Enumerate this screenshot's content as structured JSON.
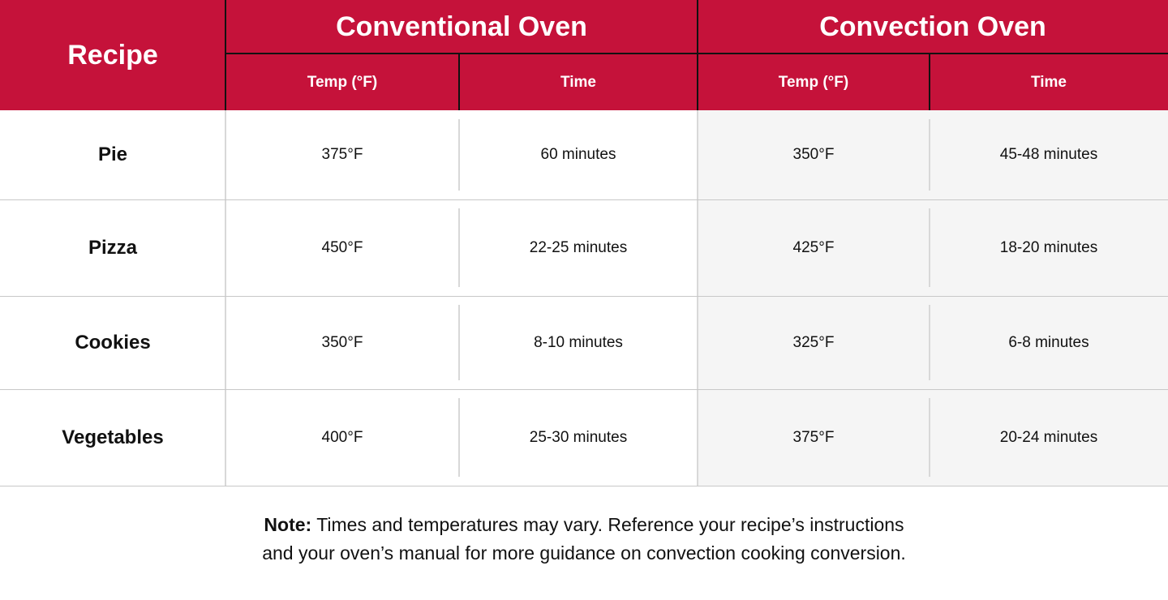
{
  "header": {
    "recipe": "Recipe",
    "groups": [
      {
        "label": "Conventional Oven",
        "temp": "Temp (°F)",
        "time": "Time"
      },
      {
        "label": "Convection Oven",
        "temp": "Temp (°F)",
        "time": "Time"
      }
    ]
  },
  "rows": [
    {
      "recipe": "Pie",
      "conv_temp": "375°F",
      "conv_time": "60 minutes",
      "convec_temp": "350°F",
      "convec_time": "45-48 minutes"
    },
    {
      "recipe": "Pizza",
      "conv_temp": "450°F",
      "conv_time": "22-25 minutes",
      "convec_temp": "425°F",
      "convec_time": "18-20 minutes"
    },
    {
      "recipe": "Cookies",
      "conv_temp": "350°F",
      "conv_time": "8-10 minutes",
      "convec_temp": "325°F",
      "convec_time": "6-8 minutes"
    },
    {
      "recipe": "Vegetables",
      "conv_temp": "400°F",
      "conv_time": "25-30 minutes",
      "convec_temp": "375°F",
      "convec_time": "20-24 minutes"
    }
  ],
  "note": {
    "label": "Note:",
    "line1": "Times and temperatures may vary. Reference your recipe’s instructions",
    "line2": "and your oven’s manual for more guidance on convection cooking conversion."
  },
  "colors": {
    "header": "#c5123a",
    "shaded": "#f5f5f5"
  }
}
